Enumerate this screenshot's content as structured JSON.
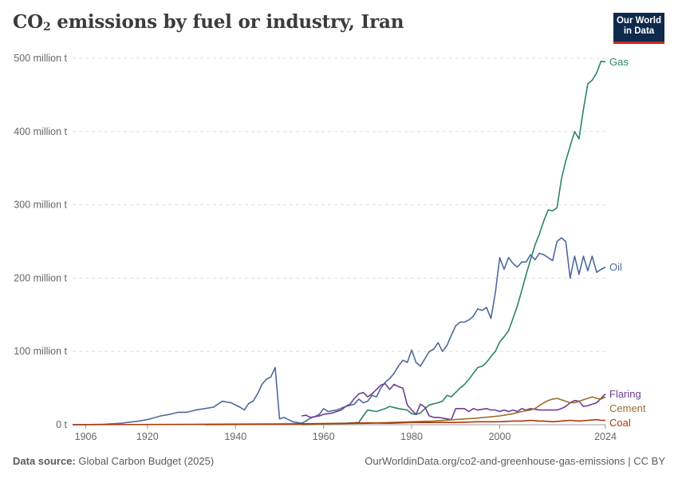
{
  "title_main": "CO",
  "title_sub": "2",
  "title_rest": " emissions by fuel or industry, Iran",
  "logo": {
    "line1": "Our World",
    "line2": "in Data"
  },
  "footer": {
    "source_label": "Data source:",
    "source_value": " Global Carbon Budget (2025)",
    "url": "OurWorldinData.org/co2-and-greenhouse-gas-emissions | CC BY"
  },
  "chart_data": {
    "type": "line",
    "title": "CO₂ emissions by fuel or industry, Iran",
    "xlim": [
      1903,
      2024
    ],
    "ylim": [
      0,
      500
    ],
    "y_unit": "million t",
    "y_ticks": [
      {
        "value": 0,
        "label": "0 t"
      },
      {
        "value": 100,
        "label": "100 million t"
      },
      {
        "value": 200,
        "label": "200 million t"
      },
      {
        "value": 300,
        "label": "300 million t"
      },
      {
        "value": 400,
        "label": "400 million t"
      },
      {
        "value": 500,
        "label": "500 million t"
      }
    ],
    "x_ticks": [
      1906,
      1920,
      1940,
      1960,
      1980,
      2000,
      2024
    ],
    "grid": "horizontal dashed",
    "legend": "line-end labels",
    "series": [
      {
        "name": "Gas",
        "color": "#2c8465",
        "points": [
          [
            1955,
            0
          ],
          [
            1960,
            1
          ],
          [
            1965,
            2
          ],
          [
            1968,
            3
          ],
          [
            1969,
            12
          ],
          [
            1970,
            20
          ],
          [
            1972,
            18
          ],
          [
            1974,
            22
          ],
          [
            1975,
            25
          ],
          [
            1977,
            22
          ],
          [
            1979,
            20
          ],
          [
            1980,
            15
          ],
          [
            1981,
            14
          ],
          [
            1982,
            16
          ],
          [
            1983,
            22
          ],
          [
            1984,
            27
          ],
          [
            1986,
            30
          ],
          [
            1987,
            32
          ],
          [
            1988,
            40
          ],
          [
            1989,
            38
          ],
          [
            1990,
            44
          ],
          [
            1991,
            50
          ],
          [
            1992,
            55
          ],
          [
            1993,
            62
          ],
          [
            1994,
            70
          ],
          [
            1995,
            78
          ],
          [
            1996,
            80
          ],
          [
            1997,
            85
          ],
          [
            1998,
            93
          ],
          [
            1999,
            100
          ],
          [
            2000,
            113
          ],
          [
            2001,
            120
          ],
          [
            2002,
            128
          ],
          [
            2003,
            145
          ],
          [
            2004,
            162
          ],
          [
            2005,
            183
          ],
          [
            2006,
            205
          ],
          [
            2007,
            225
          ],
          [
            2008,
            245
          ],
          [
            2009,
            260
          ],
          [
            2010,
            278
          ],
          [
            2011,
            293
          ],
          [
            2012,
            292
          ],
          [
            2013,
            296
          ],
          [
            2014,
            335
          ],
          [
            2015,
            360
          ],
          [
            2016,
            380
          ],
          [
            2017,
            400
          ],
          [
            2018,
            390
          ],
          [
            2019,
            430
          ],
          [
            2020,
            465
          ],
          [
            2021,
            470
          ],
          [
            2022,
            480
          ],
          [
            2023,
            496
          ],
          [
            2024,
            495
          ]
        ]
      },
      {
        "name": "Oil",
        "color": "#4c6a9c",
        "points": [
          [
            1903,
            0
          ],
          [
            1910,
            0.5
          ],
          [
            1914,
            2
          ],
          [
            1918,
            5
          ],
          [
            1920,
            7
          ],
          [
            1923,
            12
          ],
          [
            1925,
            14
          ],
          [
            1927,
            17
          ],
          [
            1929,
            17
          ],
          [
            1931,
            20
          ],
          [
            1933,
            22
          ],
          [
            1935,
            24
          ],
          [
            1937,
            32
          ],
          [
            1939,
            30
          ],
          [
            1941,
            24
          ],
          [
            1942,
            20
          ],
          [
            1943,
            29
          ],
          [
            1944,
            32
          ],
          [
            1945,
            42
          ],
          [
            1946,
            55
          ],
          [
            1947,
            62
          ],
          [
            1948,
            65
          ],
          [
            1949,
            78
          ],
          [
            1950,
            8
          ],
          [
            1951,
            10
          ],
          [
            1953,
            4
          ],
          [
            1954,
            3
          ],
          [
            1955,
            2
          ],
          [
            1956,
            5
          ],
          [
            1957,
            9
          ],
          [
            1958,
            11
          ],
          [
            1959,
            14
          ],
          [
            1960,
            22
          ],
          [
            1961,
            18
          ],
          [
            1963,
            20
          ],
          [
            1965,
            25
          ],
          [
            1967,
            28
          ],
          [
            1968,
            35
          ],
          [
            1969,
            30
          ],
          [
            1970,
            32
          ],
          [
            1971,
            40
          ],
          [
            1972,
            38
          ],
          [
            1973,
            50
          ],
          [
            1974,
            58
          ],
          [
            1975,
            63
          ],
          [
            1976,
            70
          ],
          [
            1977,
            80
          ],
          [
            1978,
            88
          ],
          [
            1979,
            85
          ],
          [
            1980,
            102
          ],
          [
            1981,
            85
          ],
          [
            1982,
            80
          ],
          [
            1983,
            90
          ],
          [
            1984,
            100
          ],
          [
            1985,
            103
          ],
          [
            1986,
            112
          ],
          [
            1987,
            100
          ],
          [
            1988,
            108
          ],
          [
            1989,
            122
          ],
          [
            1990,
            135
          ],
          [
            1991,
            140
          ],
          [
            1992,
            140
          ],
          [
            1993,
            143
          ],
          [
            1994,
            148
          ],
          [
            1995,
            158
          ],
          [
            1996,
            156
          ],
          [
            1997,
            160
          ],
          [
            1998,
            145
          ],
          [
            1999,
            180
          ],
          [
            2000,
            228
          ],
          [
            2001,
            212
          ],
          [
            2002,
            228
          ],
          [
            2003,
            220
          ],
          [
            2004,
            215
          ],
          [
            2005,
            222
          ],
          [
            2006,
            222
          ],
          [
            2007,
            232
          ],
          [
            2008,
            225
          ],
          [
            2009,
            234
          ],
          [
            2010,
            232
          ],
          [
            2011,
            228
          ],
          [
            2012,
            224
          ],
          [
            2013,
            250
          ],
          [
            2014,
            255
          ],
          [
            2015,
            250
          ],
          [
            2016,
            200
          ],
          [
            2017,
            230
          ],
          [
            2018,
            205
          ],
          [
            2019,
            230
          ],
          [
            2020,
            210
          ],
          [
            2021,
            230
          ],
          [
            2022,
            208
          ],
          [
            2023,
            212
          ],
          [
            2024,
            215
          ]
        ]
      },
      {
        "name": "Flaring",
        "color": "#6d3e91",
        "points": [
          [
            1955,
            12
          ],
          [
            1956,
            13
          ],
          [
            1957,
            10
          ],
          [
            1959,
            12
          ],
          [
            1960,
            14
          ],
          [
            1962,
            16
          ],
          [
            1964,
            20
          ],
          [
            1965,
            25
          ],
          [
            1966,
            28
          ],
          [
            1967,
            36
          ],
          [
            1968,
            42
          ],
          [
            1969,
            44
          ],
          [
            1970,
            38
          ],
          [
            1971,
            42
          ],
          [
            1972,
            48
          ],
          [
            1973,
            54
          ],
          [
            1974,
            56
          ],
          [
            1975,
            48
          ],
          [
            1976,
            55
          ],
          [
            1977,
            52
          ],
          [
            1978,
            50
          ],
          [
            1979,
            27
          ],
          [
            1980,
            20
          ],
          [
            1981,
            14
          ],
          [
            1982,
            28
          ],
          [
            1983,
            24
          ],
          [
            1984,
            12
          ],
          [
            1985,
            10
          ],
          [
            1986,
            10
          ],
          [
            1987,
            9
          ],
          [
            1988,
            8
          ],
          [
            1989,
            7
          ],
          [
            1990,
            22
          ],
          [
            1991,
            22
          ],
          [
            1992,
            22
          ],
          [
            1993,
            18
          ],
          [
            1994,
            22
          ],
          [
            1995,
            20
          ],
          [
            1996,
            21
          ],
          [
            1997,
            22
          ],
          [
            1998,
            20
          ],
          [
            1999,
            20
          ],
          [
            2000,
            18
          ],
          [
            2001,
            20
          ],
          [
            2002,
            18
          ],
          [
            2003,
            20
          ],
          [
            2004,
            18
          ],
          [
            2005,
            22
          ],
          [
            2006,
            20
          ],
          [
            2007,
            22
          ],
          [
            2008,
            21
          ],
          [
            2009,
            20
          ],
          [
            2010,
            20
          ],
          [
            2011,
            20
          ],
          [
            2012,
            20
          ],
          [
            2013,
            20
          ],
          [
            2014,
            22
          ],
          [
            2015,
            25
          ],
          [
            2016,
            30
          ],
          [
            2017,
            33
          ],
          [
            2018,
            32
          ],
          [
            2019,
            25
          ],
          [
            2020,
            26
          ],
          [
            2021,
            28
          ],
          [
            2022,
            30
          ],
          [
            2023,
            36
          ],
          [
            2024,
            42
          ]
        ]
      },
      {
        "name": "Cement",
        "color": "#9a6d2c",
        "points": [
          [
            1933,
            0
          ],
          [
            1950,
            0.5
          ],
          [
            1960,
            1
          ],
          [
            1965,
            1.5
          ],
          [
            1970,
            2
          ],
          [
            1975,
            3
          ],
          [
            1980,
            4
          ],
          [
            1985,
            5
          ],
          [
            1990,
            7
          ],
          [
            1995,
            9
          ],
          [
            2000,
            12
          ],
          [
            2003,
            15
          ],
          [
            2005,
            18
          ],
          [
            2007,
            20
          ],
          [
            2008,
            22
          ],
          [
            2009,
            26
          ],
          [
            2010,
            30
          ],
          [
            2011,
            33
          ],
          [
            2012,
            35
          ],
          [
            2013,
            36
          ],
          [
            2014,
            34
          ],
          [
            2015,
            32
          ],
          [
            2016,
            30
          ],
          [
            2017,
            30
          ],
          [
            2018,
            32
          ],
          [
            2019,
            34
          ],
          [
            2020,
            36
          ],
          [
            2021,
            38
          ],
          [
            2022,
            36
          ],
          [
            2023,
            35
          ],
          [
            2024,
            38
          ]
        ]
      },
      {
        "name": "Coal",
        "color": "#b13507",
        "points": [
          [
            1903,
            0
          ],
          [
            1930,
            0.5
          ],
          [
            1950,
            1
          ],
          [
            1960,
            1.5
          ],
          [
            1965,
            2
          ],
          [
            1970,
            2.5
          ],
          [
            1975,
            2
          ],
          [
            1980,
            3
          ],
          [
            1985,
            3
          ],
          [
            1990,
            3
          ],
          [
            1995,
            4
          ],
          [
            2000,
            4
          ],
          [
            2003,
            5
          ],
          [
            2005,
            5
          ],
          [
            2007,
            6
          ],
          [
            2009,
            5
          ],
          [
            2010,
            5
          ],
          [
            2012,
            4
          ],
          [
            2014,
            5
          ],
          [
            2016,
            6
          ],
          [
            2018,
            5
          ],
          [
            2020,
            6
          ],
          [
            2022,
            7
          ],
          [
            2023,
            6
          ],
          [
            2024,
            6
          ]
        ]
      }
    ]
  }
}
